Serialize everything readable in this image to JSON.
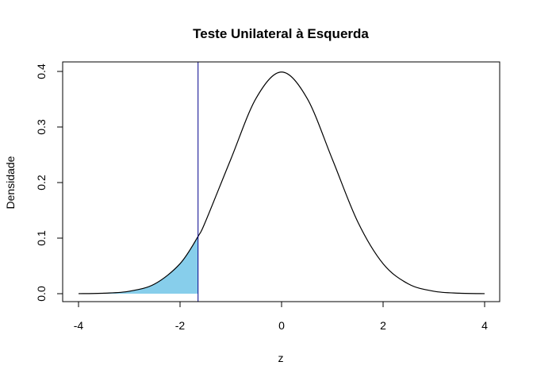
{
  "chart_data": {
    "type": "line",
    "title": "Teste Unilateral à Esquerda",
    "xlabel": "z",
    "ylabel": "Densidade",
    "xlim": [
      -4,
      4
    ],
    "ylim": [
      0,
      0.4
    ],
    "x_ticks": [
      -4,
      -2,
      0,
      2,
      4
    ],
    "y_ticks": [
      0.0,
      0.1,
      0.2,
      0.3,
      0.4
    ],
    "x_tick_labels": [
      "-4",
      "-2",
      "0",
      "2",
      "4"
    ],
    "y_tick_labels": [
      "0.0",
      "0.1",
      "0.2",
      "0.3",
      "0.4"
    ],
    "grid": false,
    "series": [
      {
        "x": [
          -4,
          -3.5,
          -3,
          -2.5,
          -2,
          -1.645,
          -1.5,
          -1,
          -0.5,
          0,
          0.5,
          1,
          1.5,
          2,
          2.5,
          3,
          3.5,
          4
        ],
        "y": [
          0.0001,
          0.0009,
          0.0044,
          0.0175,
          0.054,
          0.1031,
          0.1295,
          0.242,
          0.3521,
          0.3989,
          0.3521,
          0.242,
          0.1295,
          0.054,
          0.0175,
          0.0044,
          0.0009,
          0.0001
        ]
      }
    ],
    "critical_value": -1.645,
    "shaded_region": {
      "from": -4,
      "to": -1.645
    },
    "colors": {
      "curve": "#000000",
      "fill": "#87CEEB",
      "critical_line": "#00008B"
    }
  }
}
